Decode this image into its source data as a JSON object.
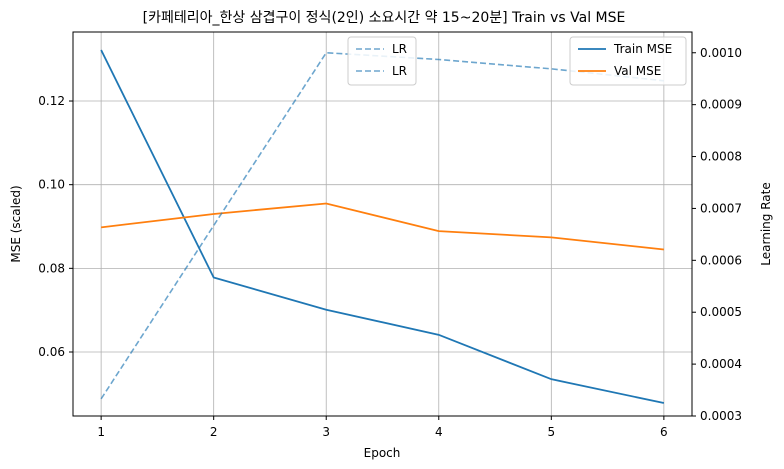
{
  "chart_data": {
    "type": "line",
    "title": "[카페테리아_한상 삼겹구이 정식(2인) 소요시간 약 15~20분] Train vs Val MSE",
    "xlabel": "Epoch",
    "ylabel": "MSE (scaled)",
    "y2label": "Learning Rate",
    "x": [
      1,
      2,
      3,
      4,
      5,
      6
    ],
    "xlim": [
      0.75,
      6.25
    ],
    "ylim": [
      0.0447,
      0.1365
    ],
    "y2lim": [
      0.0003,
      0.00104
    ],
    "x_ticks": [
      "1",
      "2",
      "3",
      "4",
      "5",
      "6"
    ],
    "y_ticks": [
      "0.06",
      "0.08",
      "0.10",
      "0.12"
    ],
    "y2_ticks": [
      "0.0003",
      "0.0004",
      "0.0005",
      "0.0006",
      "0.0007",
      "0.0008",
      "0.0009",
      "0.0010"
    ],
    "grid": true,
    "series": [
      {
        "name": "Train MSE",
        "axis": "left",
        "color": "#1f77b4",
        "style": "solid",
        "values": [
          0.1322,
          0.0778,
          0.0701,
          0.0641,
          0.0535,
          0.0478
        ]
      },
      {
        "name": "Val MSE",
        "axis": "left",
        "color": "#ff7f0e",
        "style": "solid",
        "values": [
          0.0898,
          0.093,
          0.0955,
          0.0889,
          0.0874,
          0.0845
        ]
      },
      {
        "name": "LR",
        "axis": "right",
        "color": "#1f77b4",
        "style": "dashed",
        "values": [
          0.000333,
          0.000667,
          0.001,
          0.000987,
          0.000969,
          0.000946
        ]
      }
    ],
    "legend_left": {
      "position": "upper-center",
      "entries": [
        "LR",
        "LR"
      ]
    },
    "legend_right": {
      "position": "upper-right",
      "entries": [
        "Train MSE",
        "Val MSE"
      ]
    }
  }
}
